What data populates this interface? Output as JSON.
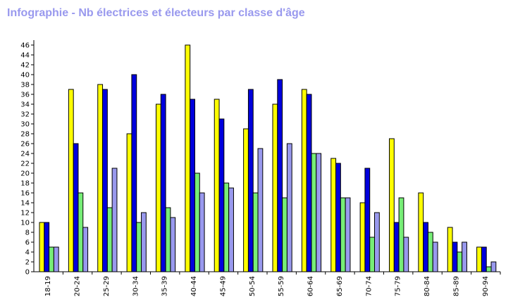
{
  "chart_data": {
    "type": "bar",
    "title": "Infographie - Nb électrices et électeurs par classe d'âge",
    "xlabel": "",
    "ylabel": "",
    "ylim": [
      0,
      47
    ],
    "yticks": [
      0,
      2,
      4,
      6,
      8,
      10,
      12,
      14,
      16,
      18,
      20,
      22,
      24,
      26,
      28,
      30,
      32,
      34,
      36,
      38,
      40,
      42,
      44,
      46
    ],
    "categories": [
      "18-19",
      "20-24",
      "25-29",
      "30-34",
      "35-39",
      "40-44",
      "45-49",
      "50-54",
      "55-59",
      "60-64",
      "65-69",
      "70-74",
      "75-79",
      "80-84",
      "85-89",
      "90-94"
    ],
    "series": [
      {
        "color": "#ffff00",
        "values": [
          10,
          37,
          38,
          28,
          34,
          46,
          35,
          29,
          34,
          37,
          23,
          14,
          27,
          16,
          9,
          5
        ]
      },
      {
        "color": "#0000dd",
        "values": [
          10,
          26,
          37,
          40,
          36,
          35,
          31,
          37,
          39,
          36,
          22,
          21,
          10,
          10,
          6,
          5
        ]
      },
      {
        "color": "#77ee77",
        "values": [
          5,
          16,
          13,
          10,
          13,
          20,
          18,
          16,
          15,
          24,
          15,
          7,
          15,
          8,
          4,
          1
        ]
      },
      {
        "color": "#9999ee",
        "values": [
          5,
          9,
          21,
          12,
          11,
          16,
          17,
          25,
          26,
          24,
          15,
          12,
          7,
          6,
          6,
          2
        ]
      }
    ],
    "grid": false,
    "legend": "none"
  }
}
